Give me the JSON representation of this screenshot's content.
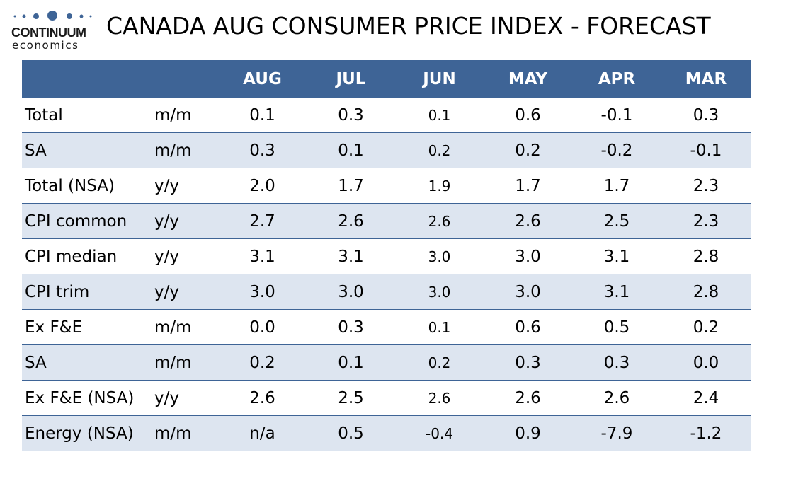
{
  "logo": {
    "brand": "CONTINUUM",
    "sub": "economics",
    "color": "#3e6496"
  },
  "title": "CANADA AUG CONSUMER PRICE INDEX - FORECAST",
  "colors": {
    "header_bg": "#3e6496",
    "header_text": "#ffffff",
    "stripe_bg": "#dde5f0",
    "row_rule": "#3e6496"
  },
  "chart_data": {
    "type": "table",
    "columns": [
      "AUG",
      "JUL",
      "JUN",
      "MAY",
      "APR",
      "MAR"
    ],
    "rows": [
      {
        "label": "Total",
        "unit": "m/m",
        "values": [
          "0.1",
          "0.3",
          "0.1",
          "0.6",
          "-0.1",
          "0.3"
        ]
      },
      {
        "label": "SA",
        "unit": "m/m",
        "values": [
          "0.3",
          "0.1",
          "0.2",
          "0.2",
          "-0.2",
          "-0.1"
        ]
      },
      {
        "label": "Total (NSA)",
        "unit": "y/y",
        "values": [
          "2.0",
          "1.7",
          "1.9",
          "1.7",
          "1.7",
          "2.3"
        ]
      },
      {
        "label": "CPI common",
        "unit": "y/y",
        "values": [
          "2.7",
          "2.6",
          "2.6",
          "2.6",
          "2.5",
          "2.3"
        ]
      },
      {
        "label": "CPI median",
        "unit": "y/y",
        "values": [
          "3.1",
          "3.1",
          "3.0",
          "3.0",
          "3.1",
          "2.8"
        ]
      },
      {
        "label": "CPI trim",
        "unit": "y/y",
        "values": [
          "3.0",
          "3.0",
          "3.0",
          "3.0",
          "3.1",
          "2.8"
        ]
      },
      {
        "label": "Ex F&E",
        "unit": "m/m",
        "values": [
          "0.0",
          "0.3",
          "0.1",
          "0.6",
          "0.5",
          "0.2"
        ]
      },
      {
        "label": "SA",
        "unit": "m/m",
        "values": [
          "0.2",
          "0.1",
          "0.2",
          "0.3",
          "0.3",
          "0.0"
        ]
      },
      {
        "label": "Ex F&E (NSA)",
        "unit": "y/y",
        "values": [
          "2.6",
          "2.5",
          "2.6",
          "2.6",
          "2.6",
          "2.4"
        ]
      },
      {
        "label": "Energy (NSA)",
        "unit": "m/m",
        "values": [
          "n/a",
          "0.5",
          "-0.4",
          "0.9",
          "-7.9",
          "-1.2"
        ]
      }
    ]
  }
}
